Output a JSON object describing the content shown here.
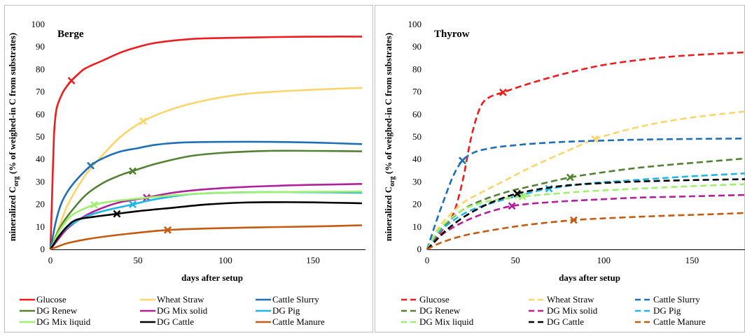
{
  "chart_data": [
    {
      "type": "line",
      "title": "Berge",
      "xlabel": "days after setup",
      "ylabel": "mineralized C_org (% of weighed-in C from substrates)",
      "ylabel_main": "mineralized C",
      "ylabel_sub": "org",
      "ylabel_rest": " (% of weighed-in C from substrates)",
      "xlim": [
        0,
        180
      ],
      "ylim": [
        0,
        100
      ],
      "xticks": [
        "0",
        "50",
        "100",
        "150"
      ],
      "yticks": [
        "0",
        "10",
        "20",
        "30",
        "40",
        "50",
        "60",
        "70",
        "80",
        "90",
        "100"
      ],
      "line_style": "solid",
      "series": [
        {
          "name": "Glucose",
          "color": "#ee1c1c",
          "marker": [
            12,
            75
          ],
          "x": [
            0,
            1,
            2,
            3,
            4,
            6,
            8,
            12,
            16,
            20,
            30,
            40,
            50,
            60,
            80,
            100,
            120,
            140,
            160,
            178
          ],
          "y": [
            0,
            25,
            50,
            60,
            64,
            68,
            71,
            75,
            78,
            80.5,
            84,
            87.5,
            90,
            91.8,
            93.5,
            94,
            94.3,
            94.5,
            94.6,
            94.6
          ]
        },
        {
          "name": "Wheat Straw",
          "color": "#fbd56b",
          "marker": [
            53,
            57
          ],
          "x": [
            0,
            5,
            10,
            20,
            30,
            40,
            53,
            70,
            90,
            110,
            130,
            150,
            178
          ],
          "y": [
            0,
            10,
            20,
            33,
            42,
            50,
            57,
            62.5,
            66.5,
            69,
            70.2,
            71,
            71.8
          ]
        },
        {
          "name": "Cattle Slurry",
          "color": "#1f6fb7",
          "marker": [
            23,
            37.2
          ],
          "x": [
            0,
            3,
            6,
            10,
            15,
            23,
            30,
            40,
            50,
            60,
            75,
            100,
            125,
            150,
            178
          ],
          "y": [
            0,
            12,
            20,
            26,
            31,
            37.2,
            40.5,
            43.5,
            45,
            46.5,
            47.5,
            47.8,
            47.8,
            47.5,
            46.8
          ]
        },
        {
          "name": "DG Renew",
          "color": "#548235",
          "marker": [
            47,
            34.8
          ],
          "x": [
            0,
            5,
            10,
            20,
            30,
            40,
            47,
            60,
            80,
            100,
            125,
            150,
            178
          ],
          "y": [
            0,
            9,
            15,
            24,
            29.5,
            33,
            34.8,
            38,
            41.5,
            43,
            43.8,
            43.8,
            43.6
          ]
        },
        {
          "name": "DG Mix solid",
          "color": "#b2209c",
          "marker": [
            55,
            23
          ],
          "x": [
            0,
            5,
            10,
            20,
            30,
            40,
            55,
            70,
            90,
            110,
            130,
            150,
            178
          ],
          "y": [
            0,
            5,
            9.5,
            15,
            18.5,
            21,
            23,
            25.2,
            26.8,
            27.7,
            28.3,
            28.7,
            29.1
          ]
        },
        {
          "name": "DG Pig",
          "color": "#20b5e8",
          "marker": [
            47,
            20
          ],
          "x": [
            0,
            5,
            10,
            20,
            30,
            40,
            47,
            60,
            80,
            100,
            125,
            150,
            178
          ],
          "y": [
            0,
            6,
            10,
            14.5,
            17,
            18.8,
            20,
            22.3,
            24.5,
            25.2,
            25.5,
            25.4,
            25.2
          ]
        },
        {
          "name": "DG Mix liquid",
          "color": "#a0f070",
          "marker": [
            25,
            19.8
          ],
          "x": [
            0,
            5,
            10,
            15,
            25,
            35,
            50,
            70,
            90,
            110,
            130,
            150,
            178
          ],
          "y": [
            0,
            8,
            13.5,
            16.5,
            19.8,
            21.3,
            22.6,
            24,
            25,
            25.3,
            25.5,
            25.6,
            25.7
          ]
        },
        {
          "name": "DG Cattle",
          "color": "#000000",
          "marker": [
            38,
            15.8
          ],
          "x": [
            0,
            5,
            10,
            15,
            25,
            38,
            50,
            70,
            90,
            110,
            130,
            150,
            178
          ],
          "y": [
            0,
            6,
            10.5,
            13.2,
            14.5,
            15.8,
            17,
            18.5,
            20,
            20.8,
            21,
            20.9,
            20.5
          ]
        },
        {
          "name": "Cattle Manure",
          "color": "#c55a11",
          "marker": [
            67,
            8.6
          ],
          "x": [
            0,
            5,
            10,
            20,
            30,
            45,
            67,
            90,
            120,
            150,
            178
          ],
          "y": [
            0,
            1.5,
            2.8,
            4.4,
            5.6,
            7,
            8.6,
            9.3,
            9.8,
            10.2,
            10.7
          ]
        }
      ]
    },
    {
      "type": "line",
      "title": "Thyrow",
      "xlabel": "days after setup",
      "ylabel": "mineralized C_org (% of weighed-in C from substrates)",
      "ylabel_main": "mineralized C",
      "ylabel_sub": "org",
      "ylabel_rest": " (% of weighed-in C from substrates)",
      "xlim": [
        0,
        180
      ],
      "ylim": [
        0,
        100
      ],
      "xticks": [
        "0",
        "50",
        "100",
        "150"
      ],
      "yticks": [
        "0",
        "10",
        "20",
        "30",
        "40",
        "50",
        "60",
        "70",
        "80",
        "90",
        "100"
      ],
      "line_style": "dashed",
      "series": [
        {
          "name": "Glucose",
          "color": "#ee1c1c",
          "marker": [
            43,
            69.8
          ],
          "x": [
            0,
            5,
            10,
            15,
            20,
            25,
            30,
            35,
            43,
            55,
            70,
            85,
            100,
            120,
            140,
            160,
            180
          ],
          "y": [
            0,
            5,
            10,
            16,
            30,
            50,
            63,
            67.5,
            69.8,
            73,
            76.5,
            79.5,
            82,
            84.2,
            85.8,
            86.8,
            87.6
          ]
        },
        {
          "name": "Wheat Straw",
          "color": "#fbd56b",
          "marker": [
            95,
            49
          ],
          "x": [
            0,
            5,
            10,
            20,
            30,
            45,
            60,
            80,
            95,
            110,
            125,
            140,
            160,
            180
          ],
          "y": [
            0,
            8,
            13,
            20.5,
            25,
            31,
            37,
            44,
            49,
            52.5,
            55.3,
            57.5,
            59.6,
            61.3
          ]
        },
        {
          "name": "Cattle Slurry",
          "color": "#1f6fb7",
          "marker": [
            20,
            39.5
          ],
          "x": [
            0,
            5,
            10,
            15,
            20,
            25,
            30,
            40,
            50,
            60,
            80,
            100,
            120,
            150,
            180
          ],
          "y": [
            0,
            12,
            23,
            33,
            39.5,
            42.5,
            44,
            45.5,
            46.3,
            47,
            47.9,
            48.4,
            48.8,
            49.1,
            49.3
          ]
        },
        {
          "name": "DG Renew",
          "color": "#548235",
          "marker": [
            81,
            32
          ],
          "x": [
            0,
            5,
            10,
            20,
            30,
            45,
            60,
            81,
            100,
            120,
            140,
            160,
            180
          ],
          "y": [
            0,
            6.5,
            11,
            17.5,
            21.5,
            25.5,
            28.3,
            32,
            34.3,
            36.3,
            37.8,
            39.1,
            40.4
          ]
        },
        {
          "name": "DG Mix solid",
          "color": "#b2209c",
          "marker": [
            48,
            19.3
          ],
          "x": [
            0,
            5,
            10,
            20,
            30,
            40,
            48,
            60,
            80,
            100,
            120,
            150,
            180
          ],
          "y": [
            0,
            4,
            7.5,
            12,
            15.3,
            17.8,
            19.3,
            20.4,
            21.5,
            22.3,
            23,
            23.6,
            24.2
          ]
        },
        {
          "name": "DG Pig",
          "color": "#20b5e8",
          "marker": [
            69,
            27
          ],
          "x": [
            0,
            5,
            10,
            20,
            30,
            45,
            60,
            69,
            90,
            110,
            130,
            150,
            180
          ],
          "y": [
            0,
            6,
            10,
            15.5,
            19,
            22.5,
            25.5,
            27,
            29.2,
            30.4,
            31.5,
            32.5,
            33.8
          ]
        },
        {
          "name": "DG Mix liquid",
          "color": "#a0f070",
          "marker": [
            54,
            23.5
          ],
          "x": [
            0,
            5,
            10,
            20,
            30,
            40,
            54,
            70,
            90,
            110,
            130,
            150,
            180
          ],
          "y": [
            0,
            7,
            11.5,
            17.5,
            20.5,
            22.2,
            23.5,
            24.6,
            25.8,
            26.6,
            27.4,
            28.1,
            29
          ]
        },
        {
          "name": "DG Cattle",
          "color": "#000000",
          "marker": [
            51,
            24.8
          ],
          "x": [
            0,
            5,
            10,
            20,
            30,
            40,
            51,
            65,
            80,
            100,
            120,
            150,
            180
          ],
          "y": [
            0,
            4,
            8,
            14,
            18.5,
            22,
            24.8,
            27,
            28.5,
            29.5,
            30.2,
            30.8,
            31.2
          ]
        },
        {
          "name": "Cattle Manure",
          "color": "#c55a11",
          "marker": [
            83,
            13
          ],
          "x": [
            0,
            5,
            10,
            20,
            30,
            45,
            60,
            83,
            100,
            120,
            140,
            160,
            180
          ],
          "y": [
            0,
            2,
            3.6,
            6,
            7.6,
            9.6,
            11.2,
            13,
            13.8,
            14.5,
            15.1,
            15.6,
            16.2
          ]
        }
      ]
    }
  ]
}
